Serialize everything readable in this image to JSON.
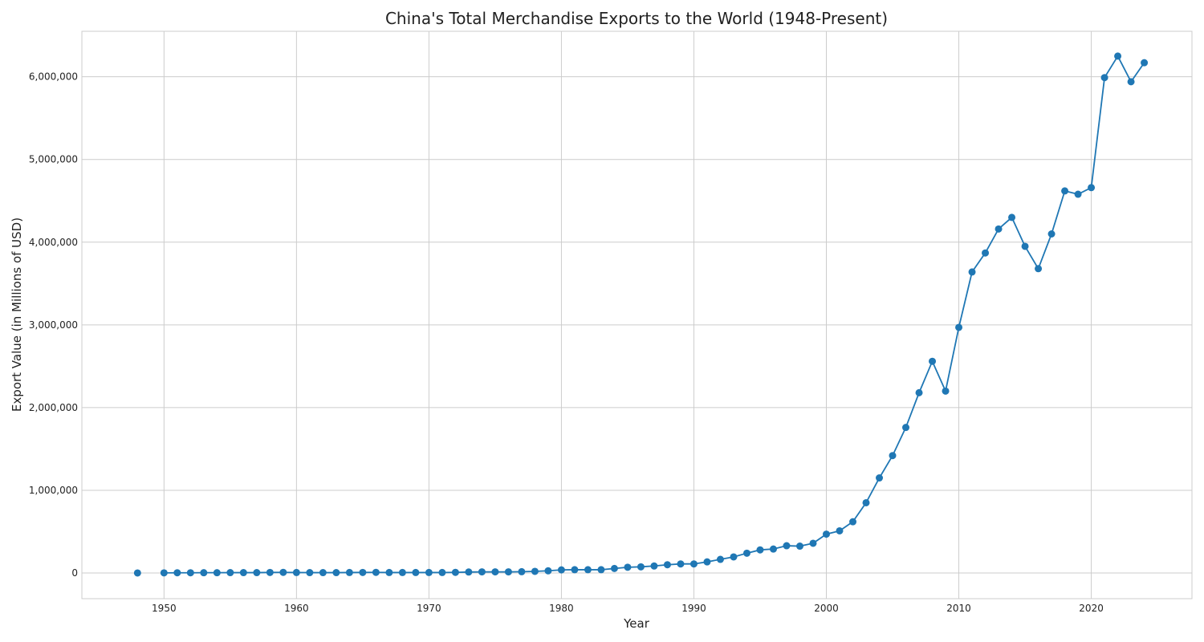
{
  "chart_data": {
    "type": "line",
    "title": "China's Total Merchandise Exports to the World (1948-Present)",
    "xlabel": "Year",
    "ylabel": "Export Value (in Millions of USD)",
    "xlim": [
      1943.8,
      2027.6
    ],
    "ylim": [
      -310000,
      6550000
    ],
    "xticks": [
      1950,
      1960,
      1970,
      1980,
      1990,
      2000,
      2010,
      2020
    ],
    "yticks": [
      0,
      1000000,
      2000000,
      3000000,
      4000000,
      5000000,
      6000000
    ],
    "ytick_labels": [
      "0",
      "1,000,000",
      "2,000,000",
      "3,000,000",
      "4,000,000",
      "5,000,000",
      "6,000,000"
    ],
    "grid": true,
    "color": "#1f77b4",
    "series": [
      {
        "segments": [
          {
            "x": [
              1948
            ],
            "y": [
              1000
            ]
          },
          {
            "x": [
              1950,
              1951,
              1952,
              1953,
              1954,
              1955,
              1956,
              1957,
              1958,
              1959,
              1960,
              1961,
              1962,
              1963,
              1964,
              1965,
              1966,
              1967,
              1968,
              1969,
              1970,
              1971,
              1972,
              1973,
              1974,
              1975,
              1976,
              1977,
              1978,
              1979,
              1980,
              1981,
              1982,
              1983,
              1984,
              1985,
              1986,
              1987,
              1988,
              1989,
              1990,
              1991,
              1992,
              1993,
              1994,
              1995,
              1996,
              1997,
              1998,
              1999,
              2000,
              2001,
              2002,
              2003,
              2004,
              2005,
              2006,
              2007,
              2008,
              2009,
              2010,
              2011,
              2012,
              2013,
              2014,
              2015,
              2016,
              2017,
              2018,
              2019,
              2020,
              2021,
              2022,
              2023,
              2024
            ],
            "y": [
              2000,
              3000,
              3000,
              4000,
              4000,
              5000,
              5000,
              5000,
              7000,
              8000,
              6000,
              5000,
              5000,
              5000,
              6000,
              7000,
              8000,
              6000,
              6000,
              6000,
              6000,
              6000,
              8000,
              12000,
              14000,
              14000,
              14000,
              16000,
              20000,
              27000,
              38000,
              40000,
              40000,
              40000,
              55000,
              70000,
              75000,
              85000,
              100000,
              110000,
              110000,
              135000,
              165000,
              195000,
              240000,
              280000,
              290000,
              330000,
              325000,
              360000,
              470000,
              510000,
              620000,
              850000,
              1150000,
              1420000,
              1760000,
              2180000,
              2560000,
              2200000,
              2970000,
              3640000,
              3870000,
              4160000,
              4300000,
              3950000,
              3680000,
              4100000,
              4620000,
              4580000,
              4660000,
              5990000,
              6250000,
              5940000,
              6170000
            ]
          }
        ]
      }
    ]
  }
}
